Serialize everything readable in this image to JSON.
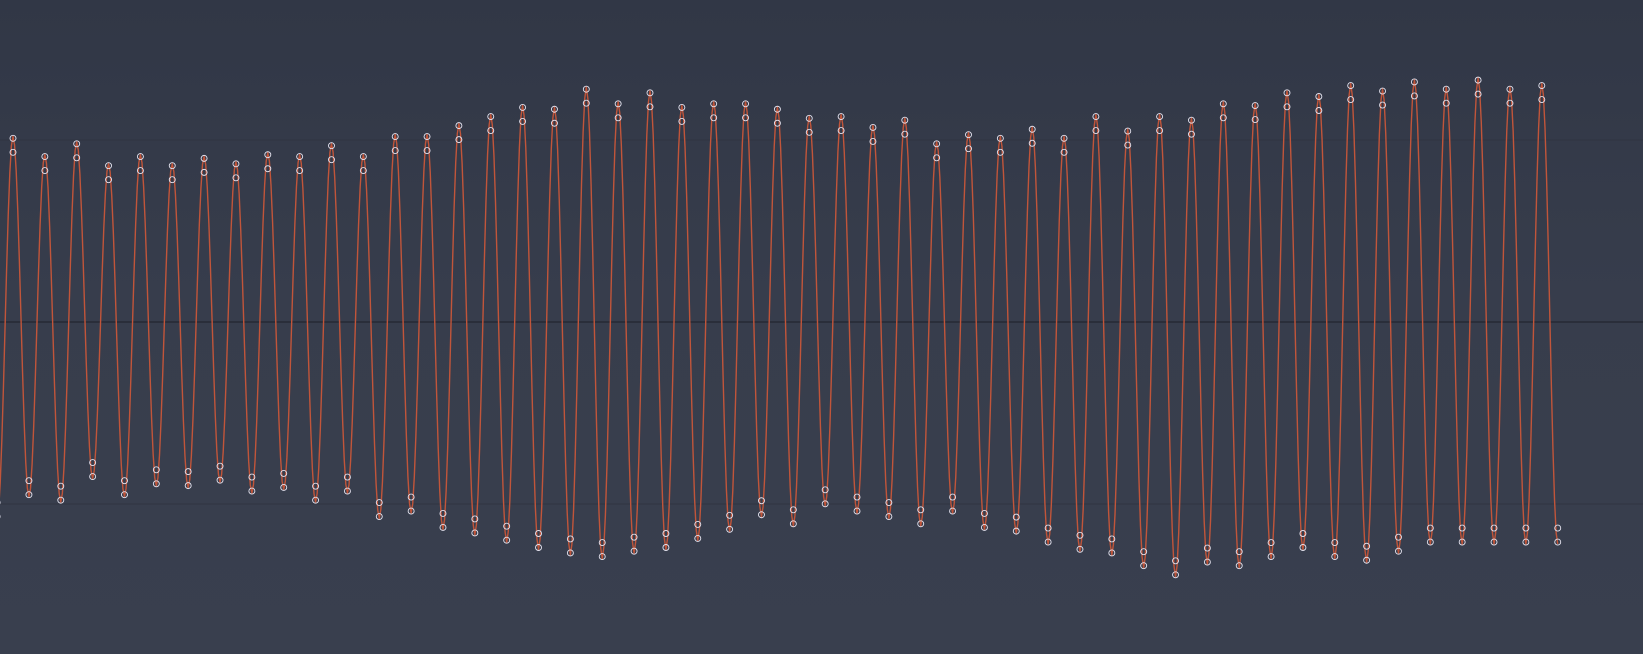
{
  "chart_data": {
    "type": "line",
    "title": "",
    "xlabel": "",
    "ylabel": "",
    "ylim": [
      -1.25,
      1.25
    ],
    "grid": true,
    "gridlines_y": [
      -1,
      0,
      1
    ],
    "series": [
      {
        "color": "#c1553a",
        "sample_markers": true,
        "marker_color": "#e6e4f0",
        "period_px_note": "",
        "peaks": [
          1.02,
          0.92,
          0.99,
          0.87,
          0.92,
          0.87,
          0.91,
          0.88,
          0.93,
          0.92,
          0.98,
          0.92,
          1.03,
          1.03,
          1.09,
          1.14,
          1.19,
          1.18,
          1.29,
          1.21,
          1.27,
          1.19,
          1.21,
          1.21,
          1.18,
          1.13,
          1.14,
          1.08,
          1.12,
          0.99,
          1.04,
          1.02,
          1.07,
          1.02,
          1.14,
          1.06,
          1.14,
          1.12,
          1.21,
          1.2,
          1.27,
          1.25,
          1.31,
          1.28,
          1.33,
          1.29,
          1.34,
          1.29,
          1.31
        ],
        "troughs": [
          -1.08,
          -0.96,
          -0.99,
          -0.86,
          -0.96,
          -0.9,
          -0.91,
          -0.88,
          -0.94,
          -0.92,
          -0.99,
          -0.94,
          -1.08,
          -1.05,
          -1.14,
          -1.17,
          -1.21,
          -1.25,
          -1.28,
          -1.3,
          -1.27,
          -1.25,
          -1.2,
          -1.15,
          -1.07,
          -1.12,
          -1.01,
          -1.05,
          -1.08,
          -1.12,
          -1.05,
          -1.14,
          -1.16,
          -1.22,
          -1.26,
          -1.28,
          -1.35,
          -1.4,
          -1.33,
          -1.35,
          -1.3,
          -1.25,
          -1.3,
          -1.32,
          -1.27,
          -1.22
        ]
      }
    ]
  }
}
